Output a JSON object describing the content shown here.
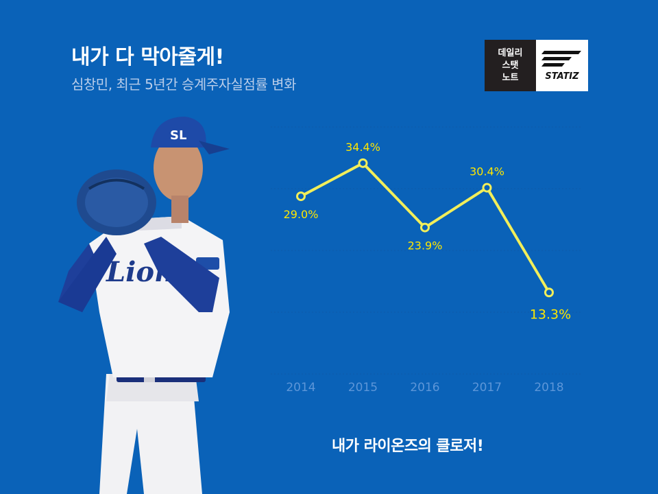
{
  "header": {
    "title": "내가 다 막아줄게!",
    "subtitle": "심창민, 최근 5년간 승계주자실점률 변화"
  },
  "logo": {
    "left_line1": "데일리",
    "left_line2": "스탯",
    "left_line3": "노트",
    "right_word": "STATIZ"
  },
  "footer": {
    "caption": "내가 라이온즈의 클로저!"
  },
  "colors": {
    "background": "#0a62b8",
    "line": "#f2ee5a",
    "label": "#ffe700",
    "tick": "#5d96d8"
  },
  "chart_data": {
    "type": "line",
    "categories": [
      "2014",
      "2015",
      "2016",
      "2017",
      "2018"
    ],
    "values": [
      29.0,
      34.4,
      23.9,
      30.4,
      13.3
    ],
    "value_labels": [
      "29.0%",
      "34.4%",
      "23.9%",
      "30.4%",
      "13.3%"
    ],
    "ylim": [
      0,
      42
    ],
    "grid": true,
    "legend": "none"
  }
}
